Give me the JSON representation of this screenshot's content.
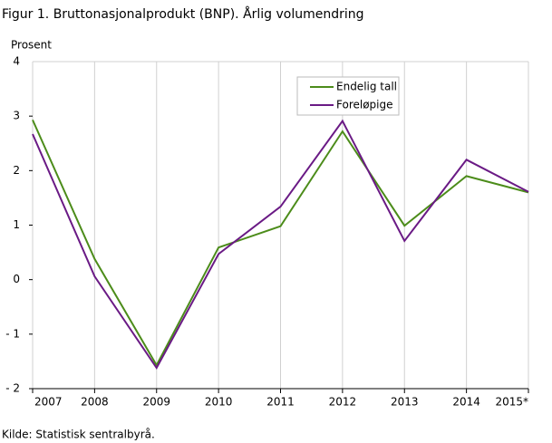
{
  "chart_data": {
    "type": "line",
    "title": "Figur 1. Bruttonasjonalprodukt (BNP). Årlig volumendring",
    "y_label": "Prosent",
    "source": "Kilde: Statistisk sentralbyrå.",
    "categories": [
      "2007",
      "2008",
      "2009",
      "2010",
      "2011",
      "2012",
      "2013",
      "2014",
      "2015*"
    ],
    "series": [
      {
        "name": "Endelig tall",
        "color": "#4c8c1a",
        "values": [
          2.93,
          0.38,
          -1.57,
          0.59,
          0.98,
          2.72,
          0.99,
          1.9,
          1.6
        ]
      },
      {
        "name": "Foreløpige",
        "color": "#6a1a85",
        "values": [
          2.67,
          0.06,
          -1.62,
          0.47,
          1.34,
          2.91,
          0.71,
          2.2,
          1.61
        ]
      }
    ],
    "ylim": [
      -2,
      4
    ],
    "yticks": [
      {
        "value": -2,
        "label": "- 2"
      },
      {
        "value": -1,
        "label": "- 1"
      },
      0,
      1,
      2,
      3,
      4
    ],
    "grid": true,
    "legend": "top-right"
  }
}
